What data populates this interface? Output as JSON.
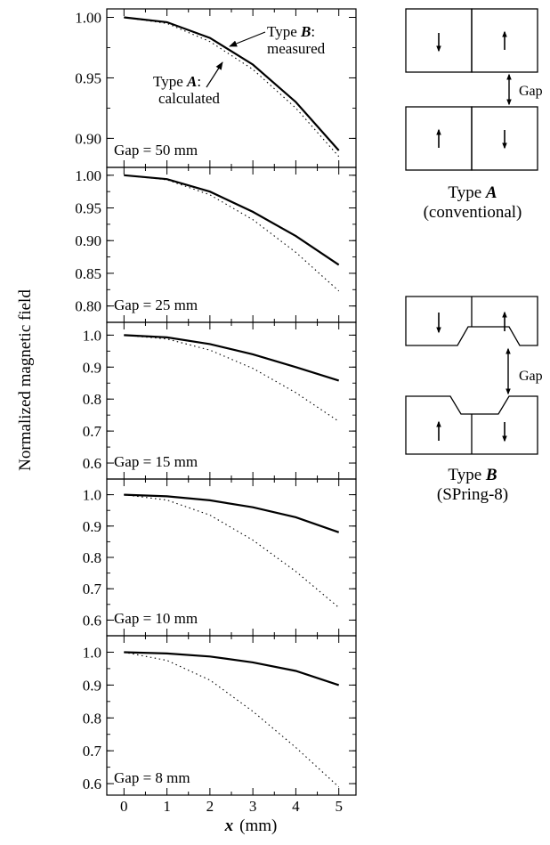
{
  "chart_data": {
    "type": "line",
    "xlabel_var": "x",
    "xlabel_unit": "(mm)",
    "ylabel": "Normalized magnetic field",
    "xlim": [
      -0.4,
      5.4
    ],
    "x_ticks": [
      "0",
      "1",
      "2",
      "3",
      "4",
      "5"
    ],
    "panels": [
      {
        "label": "Gap = 50  mm",
        "ylim": [
          0.876,
          1.007
        ],
        "y_ticks": [
          {
            "v": 1.0,
            "t": "1.00"
          },
          {
            "v": 0.95,
            "t": "0.95"
          },
          {
            "v": 0.9,
            "t": "0.90"
          }
        ],
        "series": [
          {
            "key": "typeB",
            "x": [
              0,
              1,
              2,
              3,
              4,
              5
            ],
            "y": [
              1.0,
              0.996,
              0.983,
              0.961,
              0.93,
              0.89
            ]
          },
          {
            "key": "typeA",
            "x": [
              0,
              1,
              2,
              3,
              4,
              5
            ],
            "y": [
              1.0,
              0.995,
              0.98,
              0.957,
              0.925,
              0.885
            ]
          }
        ]
      },
      {
        "label": "Gap = 25  mm",
        "ylim": [
          0.775,
          1.012
        ],
        "y_ticks": [
          {
            "v": 1.0,
            "t": "1.00"
          },
          {
            "v": 0.95,
            "t": "0.95"
          },
          {
            "v": 0.9,
            "t": "0.90"
          },
          {
            "v": 0.85,
            "t": "0.85"
          },
          {
            "v": 0.8,
            "t": "0.80"
          }
        ],
        "series": [
          {
            "key": "typeB",
            "x": [
              0,
              1,
              2,
              3,
              4,
              5
            ],
            "y": [
              1.0,
              0.994,
              0.975,
              0.944,
              0.907,
              0.863
            ]
          },
          {
            "key": "typeA",
            "x": [
              0,
              1,
              2,
              3,
              4,
              5
            ],
            "y": [
              1.0,
              0.993,
              0.97,
              0.932,
              0.882,
              0.823
            ]
          }
        ]
      },
      {
        "label": "Gap = 15  mm",
        "ylim": [
          0.55,
          1.04
        ],
        "y_ticks": [
          {
            "v": 1.0,
            "t": "1.0"
          },
          {
            "v": 0.9,
            "t": "0.9"
          },
          {
            "v": 0.8,
            "t": "0.8"
          },
          {
            "v": 0.7,
            "t": "0.7"
          },
          {
            "v": 0.6,
            "t": "0.6"
          }
        ],
        "series": [
          {
            "key": "typeB",
            "x": [
              0,
              1,
              2,
              3,
              4,
              5
            ],
            "y": [
              1.0,
              0.993,
              0.972,
              0.94,
              0.9,
              0.858
            ]
          },
          {
            "key": "typeA",
            "x": [
              0,
              1,
              2,
              3,
              4,
              5
            ],
            "y": [
              1.0,
              0.988,
              0.953,
              0.896,
              0.82,
              0.73
            ]
          }
        ]
      },
      {
        "label": "Gap = 10  mm",
        "ylim": [
          0.55,
          1.05
        ],
        "y_ticks": [
          {
            "v": 1.0,
            "t": "1.0"
          },
          {
            "v": 0.9,
            "t": "0.9"
          },
          {
            "v": 0.8,
            "t": "0.8"
          },
          {
            "v": 0.7,
            "t": "0.7"
          },
          {
            "v": 0.6,
            "t": "0.6"
          }
        ],
        "series": [
          {
            "key": "typeB",
            "x": [
              0,
              1,
              2,
              3,
              4,
              5
            ],
            "y": [
              1.0,
              0.995,
              0.982,
              0.96,
              0.928,
              0.88
            ]
          },
          {
            "key": "typeA",
            "x": [
              0,
              1,
              2,
              3,
              4,
              5
            ],
            "y": [
              1.0,
              0.983,
              0.935,
              0.855,
              0.755,
              0.64
            ]
          }
        ]
      },
      {
        "label": "Gap = 8  mm",
        "ylim": [
          0.565,
          1.05
        ],
        "y_ticks": [
          {
            "v": 1.0,
            "t": "1.0"
          },
          {
            "v": 0.9,
            "t": "0.9"
          },
          {
            "v": 0.8,
            "t": "0.8"
          },
          {
            "v": 0.7,
            "t": "0.7"
          },
          {
            "v": 0.6,
            "t": "0.6"
          }
        ],
        "series": [
          {
            "key": "typeB",
            "x": [
              0,
              1,
              2,
              3,
              4,
              5
            ],
            "y": [
              1.0,
              0.996,
              0.987,
              0.969,
              0.943,
              0.9
            ]
          },
          {
            "key": "typeA",
            "x": [
              0,
              1,
              2,
              3,
              4,
              5
            ],
            "y": [
              1.0,
              0.975,
              0.915,
              0.82,
              0.71,
              0.59
            ]
          }
        ]
      }
    ],
    "annotations": {
      "typeB": {
        "name": "Type",
        "letter": "B",
        "tail": ":",
        "line2": "measured"
      },
      "typeA": {
        "name": "Type",
        "letter": "A",
        "tail": ":",
        "line2": "calculated"
      }
    }
  },
  "diagrams": {
    "gap_label": "Gap",
    "type_a": {
      "name": "Type",
      "letter": "A",
      "caption": "(conventional)"
    },
    "type_b": {
      "name": "Type",
      "letter": "B",
      "caption": "(SPring-8)"
    }
  }
}
